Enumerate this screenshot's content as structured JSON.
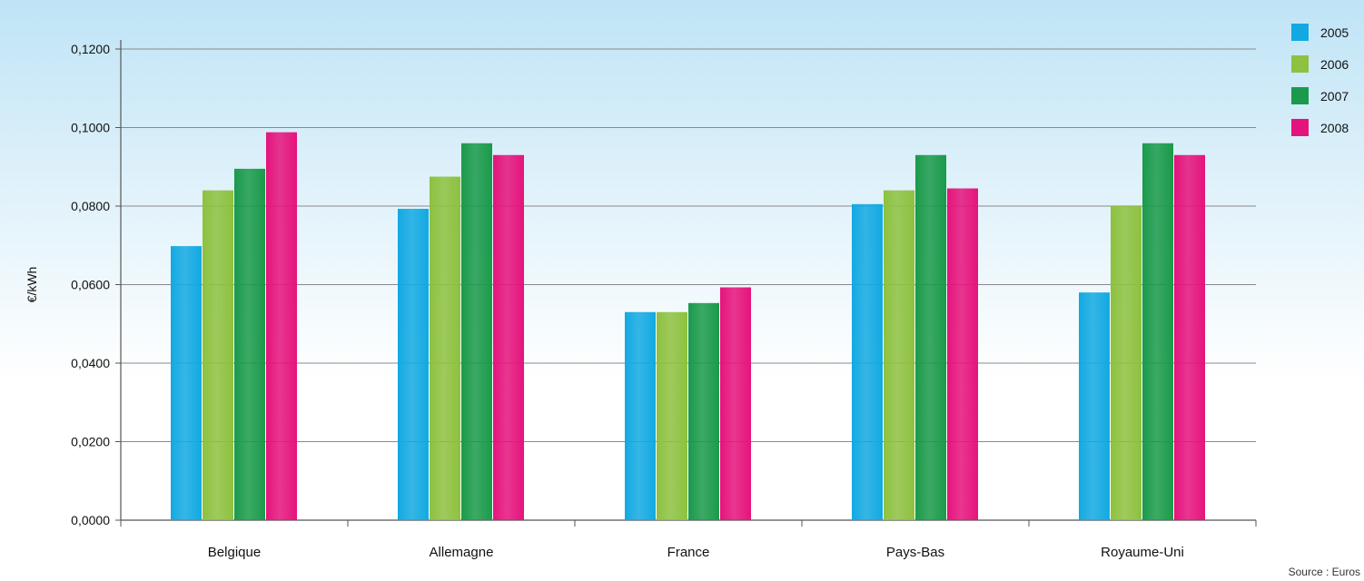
{
  "chart_data": {
    "type": "bar",
    "title": "",
    "xlabel": "",
    "ylabel": "€/kWh",
    "ylim": [
      0,
      0.12
    ],
    "yticks": [
      "0,0000",
      "0,0200",
      "0,0400",
      "0,0600",
      "0,0800",
      "0,1000",
      "0,1200"
    ],
    "ytick_values": [
      0,
      0.02,
      0.04,
      0.06,
      0.08,
      0.1,
      0.12
    ],
    "grid": true,
    "legend_position": "top-right",
    "categories": [
      "Belgique",
      "Allemagne",
      "France",
      "Pays-Bas",
      "Royaume-Uni"
    ],
    "series": [
      {
        "name": "2005",
        "color": "#12a9e2",
        "values": [
          0.0698,
          0.0793,
          0.053,
          0.0805,
          0.058
        ]
      },
      {
        "name": "2006",
        "color": "#8dc13f",
        "values": [
          0.084,
          0.0875,
          0.053,
          0.084,
          0.08
        ]
      },
      {
        "name": "2007",
        "color": "#1a9a4a",
        "values": [
          0.0895,
          0.096,
          0.0553,
          0.093,
          0.096
        ]
      },
      {
        "name": "2008",
        "color": "#e5137c",
        "values": [
          0.0988,
          0.093,
          0.0593,
          0.0845,
          0.093
        ]
      }
    ],
    "source": "Source : Euros"
  }
}
